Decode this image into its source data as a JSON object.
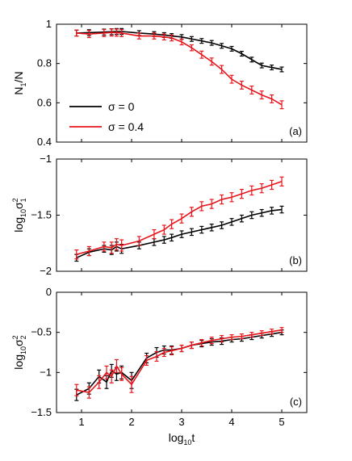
{
  "colors": {
    "sigma0": "#000000",
    "sigma04": "#e8141b"
  },
  "chart_data": [
    {
      "type": "line",
      "panel_label": "(a)",
      "ylabel_main": "N",
      "ylabel_sub": "1",
      "ylabel_rest": "/N",
      "xlim": [
        0.5,
        5.5
      ],
      "ylim": [
        0.4,
        1.0
      ],
      "yticks": [
        "0.4",
        "0.6",
        "0.8",
        "1"
      ],
      "yticks_values": [
        0.4,
        0.6,
        0.8,
        1.0
      ],
      "legend": {
        "placement": "bottom-left",
        "entries": [
          "σ = 0",
          "σ = 0.4"
        ]
      },
      "series": [
        {
          "name": "σ = 0",
          "color": "#000000",
          "x": [
            0.9,
            1.15,
            1.45,
            1.6,
            1.7,
            1.8,
            2.15,
            2.45,
            2.65,
            2.8,
            3.0,
            3.2,
            3.4,
            3.6,
            3.8,
            4.0,
            4.2,
            4.4,
            4.6,
            4.8,
            5.0
          ],
          "y": [
            0.955,
            0.957,
            0.96,
            0.962,
            0.963,
            0.963,
            0.955,
            0.95,
            0.945,
            0.94,
            0.935,
            0.925,
            0.915,
            0.905,
            0.89,
            0.875,
            0.85,
            0.82,
            0.79,
            0.78,
            0.77
          ],
          "err": [
            0.015,
            0.015,
            0.015,
            0.015,
            0.015,
            0.015,
            0.012,
            0.012,
            0.012,
            0.012,
            0.012,
            0.012,
            0.012,
            0.012,
            0.012,
            0.012,
            0.012,
            0.012,
            0.012,
            0.012,
            0.012
          ]
        },
        {
          "name": "σ = 0.4",
          "color": "#e8141b",
          "x": [
            0.9,
            1.15,
            1.45,
            1.6,
            1.7,
            1.8,
            2.15,
            2.45,
            2.65,
            2.8,
            3.0,
            3.2,
            3.4,
            3.6,
            3.8,
            4.0,
            4.2,
            4.4,
            4.6,
            4.8,
            5.0
          ],
          "y": [
            0.955,
            0.95,
            0.955,
            0.958,
            0.957,
            0.955,
            0.94,
            0.94,
            0.935,
            0.93,
            0.91,
            0.88,
            0.845,
            0.81,
            0.77,
            0.72,
            0.69,
            0.665,
            0.64,
            0.62,
            0.59
          ],
          "err": [
            0.015,
            0.018,
            0.018,
            0.018,
            0.018,
            0.018,
            0.015,
            0.015,
            0.015,
            0.015,
            0.015,
            0.015,
            0.018,
            0.018,
            0.02,
            0.02,
            0.02,
            0.02,
            0.02,
            0.02,
            0.02
          ]
        }
      ]
    },
    {
      "type": "line",
      "panel_label": "(b)",
      "ylabel_main": "log",
      "ylabel_sub": "10",
      "ylabel_sym": "σ",
      "ylabel_sup": "2",
      "ylabel_sub2": "1",
      "xlim": [
        0.5,
        5.5
      ],
      "ylim": [
        -2.0,
        -1.0
      ],
      "yticks": [
        "−2",
        "−1.5",
        "−1"
      ],
      "yticks_values": [
        -2.0,
        -1.5,
        -1.0
      ],
      "series": [
        {
          "name": "σ = 0",
          "color": "#000000",
          "x": [
            0.9,
            1.15,
            1.45,
            1.6,
            1.7,
            1.8,
            2.15,
            2.45,
            2.65,
            2.8,
            3.0,
            3.2,
            3.4,
            3.6,
            3.8,
            4.0,
            4.2,
            4.4,
            4.6,
            4.8,
            5.0
          ],
          "y": [
            -1.88,
            -1.83,
            -1.8,
            -1.81,
            -1.78,
            -1.8,
            -1.77,
            -1.74,
            -1.72,
            -1.7,
            -1.67,
            -1.65,
            -1.63,
            -1.61,
            -1.59,
            -1.56,
            -1.53,
            -1.5,
            -1.48,
            -1.46,
            -1.45
          ],
          "err": [
            0.03,
            0.03,
            0.03,
            0.04,
            0.04,
            0.04,
            0.03,
            0.03,
            0.03,
            0.03,
            0.03,
            0.03,
            0.03,
            0.03,
            0.03,
            0.03,
            0.03,
            0.03,
            0.03,
            0.03,
            0.03
          ]
        },
        {
          "name": "σ = 0.4",
          "color": "#e8141b",
          "x": [
            0.9,
            1.15,
            1.45,
            1.6,
            1.7,
            1.8,
            2.15,
            2.45,
            2.65,
            2.8,
            3.0,
            3.2,
            3.4,
            3.6,
            3.8,
            4.0,
            4.2,
            4.4,
            4.6,
            4.8,
            5.0
          ],
          "y": [
            -1.85,
            -1.82,
            -1.78,
            -1.79,
            -1.76,
            -1.77,
            -1.73,
            -1.67,
            -1.63,
            -1.58,
            -1.53,
            -1.47,
            -1.42,
            -1.4,
            -1.36,
            -1.34,
            -1.31,
            -1.28,
            -1.26,
            -1.23,
            -1.2
          ],
          "err": [
            0.04,
            0.04,
            0.04,
            0.05,
            0.05,
            0.05,
            0.04,
            0.04,
            0.04,
            0.04,
            0.04,
            0.04,
            0.04,
            0.04,
            0.04,
            0.04,
            0.04,
            0.04,
            0.04,
            0.04,
            0.04
          ]
        }
      ]
    },
    {
      "type": "line",
      "panel_label": "(c)",
      "ylabel_main": "log",
      "ylabel_sub": "10",
      "ylabel_sym": "σ",
      "ylabel_sup": "2",
      "ylabel_sub2": "2",
      "xlabel_main": "log",
      "xlabel_sub": "10",
      "xlabel_rest": "t",
      "xlim": [
        0.5,
        5.5
      ],
      "ylim": [
        -1.5,
        0.0
      ],
      "xticks": [
        "1",
        "2",
        "3",
        "4",
        "5"
      ],
      "xticks_values": [
        1,
        2,
        3,
        4,
        5
      ],
      "yticks": [
        "−1.5",
        "−1",
        "−0.5",
        "0"
      ],
      "yticks_values": [
        -1.5,
        -1.0,
        -0.5,
        0.0
      ],
      "series": [
        {
          "name": "σ = 0",
          "color": "#000000",
          "x": [
            0.9,
            1.15,
            1.35,
            1.5,
            1.6,
            1.7,
            1.8,
            2.0,
            2.3,
            2.5,
            2.65,
            2.8,
            3.0,
            3.2,
            3.4,
            3.6,
            3.8,
            4.0,
            4.2,
            4.4,
            4.6,
            4.8,
            5.0
          ],
          "y": [
            -1.28,
            -1.2,
            -1.05,
            -1.12,
            -0.98,
            -1.02,
            -1.0,
            -1.1,
            -0.82,
            -0.75,
            -0.72,
            -0.72,
            -0.7,
            -0.66,
            -0.64,
            -0.62,
            -0.61,
            -0.59,
            -0.58,
            -0.56,
            -0.54,
            -0.52,
            -0.5
          ],
          "err": [
            0.07,
            0.07,
            0.08,
            0.08,
            0.08,
            0.08,
            0.08,
            0.1,
            0.06,
            0.06,
            0.05,
            0.05,
            0.04,
            0.04,
            0.04,
            0.04,
            0.04,
            0.03,
            0.03,
            0.03,
            0.03,
            0.03,
            0.03
          ]
        },
        {
          "name": "σ = 0.4",
          "color": "#e8141b",
          "x": [
            0.9,
            1.15,
            1.35,
            1.5,
            1.6,
            1.7,
            1.8,
            2.0,
            2.3,
            2.5,
            2.65,
            2.8,
            3.0,
            3.2,
            3.4,
            3.6,
            3.8,
            4.0,
            4.2,
            4.4,
            4.6,
            4.8,
            5.0
          ],
          "y": [
            -1.22,
            -1.25,
            -1.12,
            -1.0,
            -1.05,
            -0.92,
            -1.02,
            -1.15,
            -0.85,
            -0.8,
            -0.75,
            -0.73,
            -0.7,
            -0.66,
            -0.63,
            -0.6,
            -0.58,
            -0.56,
            -0.55,
            -0.53,
            -0.51,
            -0.49,
            -0.47
          ],
          "err": [
            0.07,
            0.07,
            0.08,
            0.08,
            0.08,
            0.08,
            0.08,
            0.1,
            0.06,
            0.06,
            0.05,
            0.05,
            0.04,
            0.04,
            0.04,
            0.04,
            0.04,
            0.03,
            0.03,
            0.03,
            0.03,
            0.03,
            0.03
          ]
        }
      ]
    }
  ]
}
